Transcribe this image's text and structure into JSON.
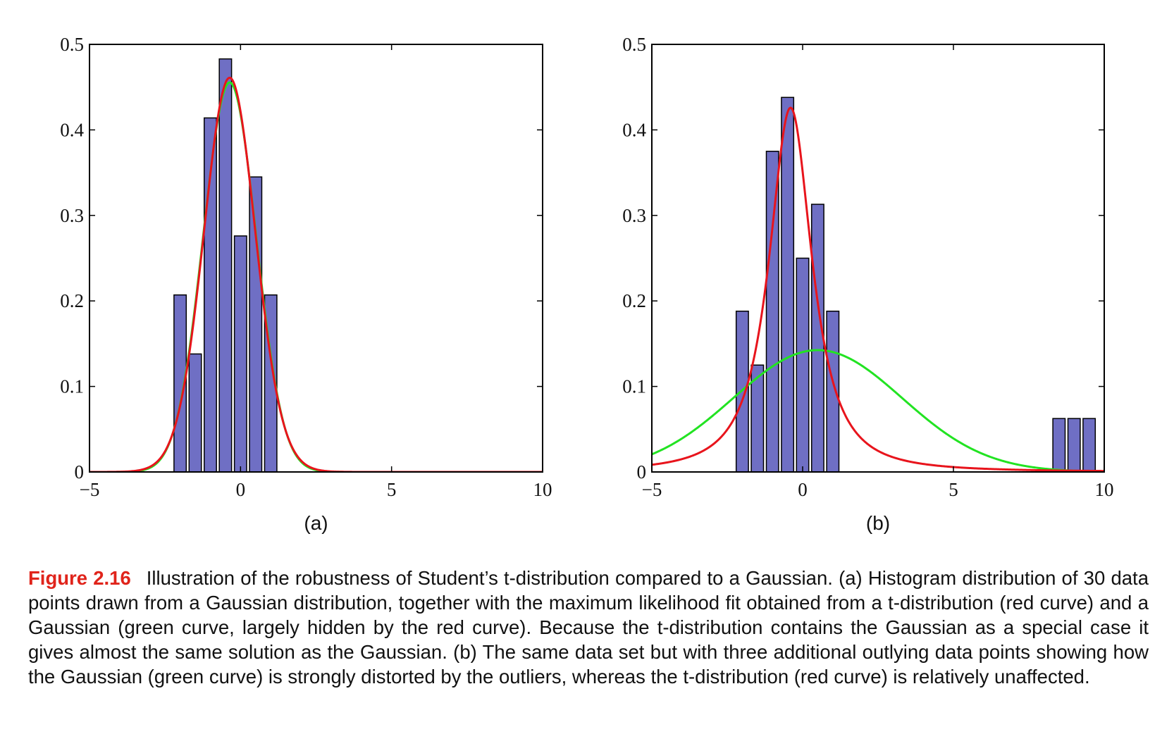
{
  "chart_data": [
    {
      "type": "bar",
      "panel_label": "(a)",
      "xlim": [
        -5,
        10
      ],
      "ylim": [
        0,
        0.5
      ],
      "xticks": [
        -5,
        0,
        5,
        10
      ],
      "xtick_labels": [
        "−5",
        "0",
        "5",
        "10"
      ],
      "yticks": [
        0,
        0.1,
        0.2,
        0.3,
        0.4,
        0.5
      ],
      "ytick_labels": [
        "0",
        "0.1",
        "0.2",
        "0.3",
        "0.4",
        "0.5"
      ],
      "grid": false,
      "bar_color": "#6f6fc4",
      "histogram": {
        "bin_width": 0.5,
        "bin_centers": [
          -2.0,
          -1.5,
          -1.0,
          -0.5,
          0.0,
          0.5,
          1.0
        ],
        "values": [
          0.207,
          0.138,
          0.414,
          0.483,
          0.276,
          0.345,
          0.207
        ]
      },
      "curves": [
        {
          "color": "#22e322",
          "family": "gaussian",
          "mu": -0.36,
          "sigma": 0.876
        },
        {
          "color": "#e8141c",
          "family": "student-t",
          "mu": -0.36,
          "scale": 0.86,
          "nu": 40
        }
      ]
    },
    {
      "type": "bar",
      "panel_label": "(b)",
      "xlim": [
        -5,
        10
      ],
      "ylim": [
        0,
        0.5
      ],
      "xticks": [
        -5,
        0,
        5,
        10
      ],
      "xtick_labels": [
        "−5",
        "0",
        "5",
        "10"
      ],
      "yticks": [
        0,
        0.1,
        0.2,
        0.3,
        0.4,
        0.5
      ],
      "ytick_labels": [
        "0",
        "0.1",
        "0.2",
        "0.3",
        "0.4",
        "0.5"
      ],
      "grid": false,
      "bar_color": "#6f6fc4",
      "histogram": {
        "bin_width": 0.5,
        "bin_centers": [
          -2.0,
          -1.5,
          -1.0,
          -0.5,
          0.0,
          0.5,
          1.0,
          8.5,
          9.0,
          9.5
        ],
        "values": [
          0.188,
          0.125,
          0.375,
          0.438,
          0.25,
          0.313,
          0.188,
          0.0625,
          0.0625,
          0.0625
        ]
      },
      "curves": [
        {
          "color": "#22e322",
          "family": "gaussian",
          "mu": 0.5,
          "sigma": 2.8
        },
        {
          "color": "#e8141c",
          "family": "student-t",
          "mu": -0.4,
          "scale": 0.8,
          "nu": 1.5
        }
      ]
    }
  ],
  "caption": {
    "figure_number": "Figure 2.16",
    "text": "Illustration of the robustness of Student’s t-distribution compared to a Gaussian. (a) Histogram distribution of 30 data points drawn from a Gaussian distribution, together with the maximum likelihood fit obtained from a t-distribution (red curve) and a Gaussian (green curve, largely hidden by the red curve). Because the t-distribution contains the Gaussian as a special case it gives almost the same solution as the Gaussian. (b) The same data set but with three additional outlying data points showing how the Gaussian (green curve) is strongly distorted by the outliers, whereas the t-distribution (red curve) is relatively unaffected."
  }
}
